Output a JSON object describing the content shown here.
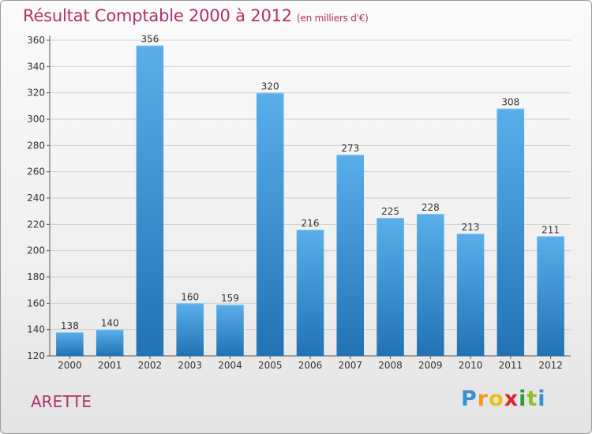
{
  "chart_data": {
    "type": "bar",
    "title": "Résultat Comptable 2000 à 2012",
    "subtitle": "(en milliers d'€)",
    "categories": [
      "2000",
      "2001",
      "2002",
      "2003",
      "2004",
      "2005",
      "2006",
      "2007",
      "2008",
      "2009",
      "2010",
      "2011",
      "2012"
    ],
    "values": [
      138,
      140,
      356,
      160,
      159,
      320,
      216,
      273,
      225,
      228,
      213,
      308,
      211
    ],
    "ylim": [
      120,
      360
    ],
    "yticks": [
      120,
      140,
      160,
      180,
      200,
      220,
      240,
      260,
      280,
      300,
      320,
      340,
      360
    ],
    "xlabel": "",
    "ylabel": "",
    "grid": true
  },
  "commune": "ARETTE",
  "logo": {
    "letters": [
      "P",
      "r",
      "o",
      "x",
      "i",
      "t",
      "i"
    ],
    "colors": [
      "#3a8fd0",
      "#f29a1a",
      "#e8c21a",
      "#d8262c",
      "#2e9b3d",
      "#8fbf2b",
      "#3a8fd0"
    ]
  },
  "colors": {
    "bar_top": "#5aaeea",
    "bar_bottom": "#2272b4",
    "accent": "#b2306a"
  }
}
